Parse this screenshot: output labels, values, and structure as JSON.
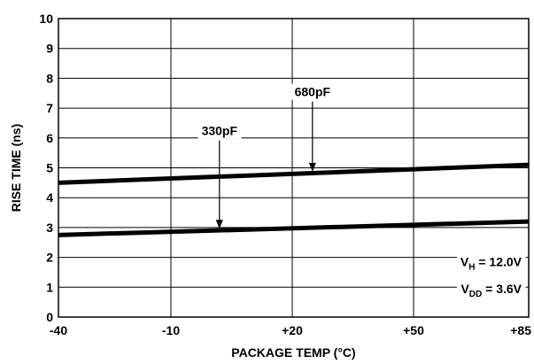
{
  "chart_data": {
    "type": "line",
    "title": "",
    "xlabel": "PACKAGE TEMP (°C)",
    "ylabel": "RISE TIME (ns)",
    "xlim": [
      -40,
      85
    ],
    "ylim": [
      0,
      10
    ],
    "x_ticks": [
      -40,
      -10,
      20,
      50,
      85
    ],
    "x_tick_labels": [
      "-40",
      "-10",
      "+20",
      "+50",
      "+85"
    ],
    "y_ticks": [
      0,
      1,
      2,
      3,
      4,
      5,
      6,
      7,
      8,
      9,
      10
    ],
    "y_tick_labels": [
      "0",
      "1",
      "2",
      "3",
      "4",
      "5",
      "6",
      "7",
      "8",
      "9",
      "10"
    ],
    "grid": true,
    "series": [
      {
        "name": "680pF",
        "x": [
          -40,
          85
        ],
        "y": [
          4.5,
          5.1
        ]
      },
      {
        "name": "330pF",
        "x": [
          -40,
          85
        ],
        "y": [
          2.75,
          3.2
        ]
      }
    ],
    "annotations": [
      {
        "label": "680pF",
        "target_series": "680pF",
        "target_x": 25
      },
      {
        "label": "330pF",
        "target_series": "330pF",
        "target_x": 2
      }
    ],
    "conditions": {
      "vh": {
        "main": "V",
        "sub": "H",
        "rest": " = 12.0V"
      },
      "vdd": {
        "main": "V",
        "sub": "DD",
        "rest": " = 3.6V"
      }
    }
  }
}
